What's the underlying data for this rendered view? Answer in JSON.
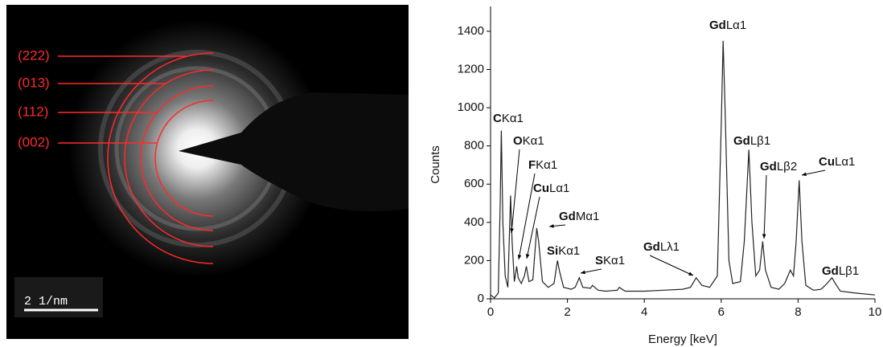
{
  "chart_data": {
    "type": "line",
    "x_label": "Energy [keV]",
    "y_label": "Counts",
    "xlim": [
      0,
      10
    ],
    "ylim": [
      0,
      1530
    ],
    "xticks": [
      0,
      2,
      4,
      6,
      8,
      10
    ],
    "yticks": [
      0,
      200,
      400,
      600,
      800,
      1000,
      1200,
      1400
    ],
    "series": [
      {
        "color": "#222222",
        "x": [
          0.0,
          0.1,
          0.2,
          0.25,
          0.28,
          0.32,
          0.38,
          0.45,
          0.52,
          0.56,
          0.62,
          0.68,
          0.72,
          0.8,
          0.88,
          0.93,
          1.0,
          1.1,
          1.2,
          1.25,
          1.35,
          1.5,
          1.65,
          1.74,
          1.8,
          1.9,
          2.1,
          2.2,
          2.31,
          2.4,
          2.6,
          2.65,
          2.8,
          3.0,
          3.3,
          3.35,
          3.5,
          4.0,
          4.5,
          5.0,
          5.2,
          5.35,
          5.5,
          5.7,
          5.9,
          6.0,
          6.05,
          6.1,
          6.2,
          6.3,
          6.5,
          6.6,
          6.72,
          6.8,
          6.9,
          7.0,
          7.08,
          7.15,
          7.3,
          7.5,
          7.65,
          7.8,
          7.88,
          7.95,
          8.03,
          8.1,
          8.2,
          8.4,
          8.6,
          8.75,
          8.88,
          9.0,
          9.1,
          9.5,
          10.0
        ],
        "values": [
          20,
          5,
          30,
          500,
          880,
          400,
          120,
          60,
          540,
          300,
          90,
          170,
          110,
          80,
          120,
          170,
          90,
          100,
          370,
          300,
          90,
          60,
          80,
          200,
          140,
          60,
          50,
          60,
          110,
          60,
          55,
          70,
          45,
          40,
          45,
          60,
          40,
          40,
          45,
          50,
          60,
          110,
          70,
          60,
          120,
          900,
          1350,
          1000,
          200,
          80,
          90,
          300,
          780,
          400,
          120,
          150,
          300,
          150,
          60,
          50,
          80,
          150,
          120,
          300,
          620,
          300,
          70,
          45,
          50,
          80,
          110,
          70,
          40,
          30,
          20
        ]
      }
    ],
    "annotations": [
      {
        "element": "C",
        "line": "Kα1"
      },
      {
        "element": "O",
        "line": "Kα1"
      },
      {
        "element": "F",
        "line": "Kα1"
      },
      {
        "element": "Cu",
        "line": "Lα1"
      },
      {
        "element": "Gd",
        "line": "Mα1"
      },
      {
        "element": "Si",
        "line": "Kα1"
      },
      {
        "element": "S",
        "line": "Kα1"
      },
      {
        "element": "Gd",
        "line": "Lλ1"
      },
      {
        "element": "Gd",
        "line": "Lα1"
      },
      {
        "element": "Gd",
        "line": "Lβ1"
      },
      {
        "element": "Gd",
        "line": "Lβ2"
      },
      {
        "element": "Cu",
        "line": "Lα1"
      },
      {
        "element": "Gd",
        "line": "Lβ1"
      }
    ]
  },
  "diffraction_image": {
    "ring_labels": [
      "(222)",
      "(013)",
      "(112)",
      "(002)"
    ],
    "scale_bar": "2 1/nm"
  }
}
